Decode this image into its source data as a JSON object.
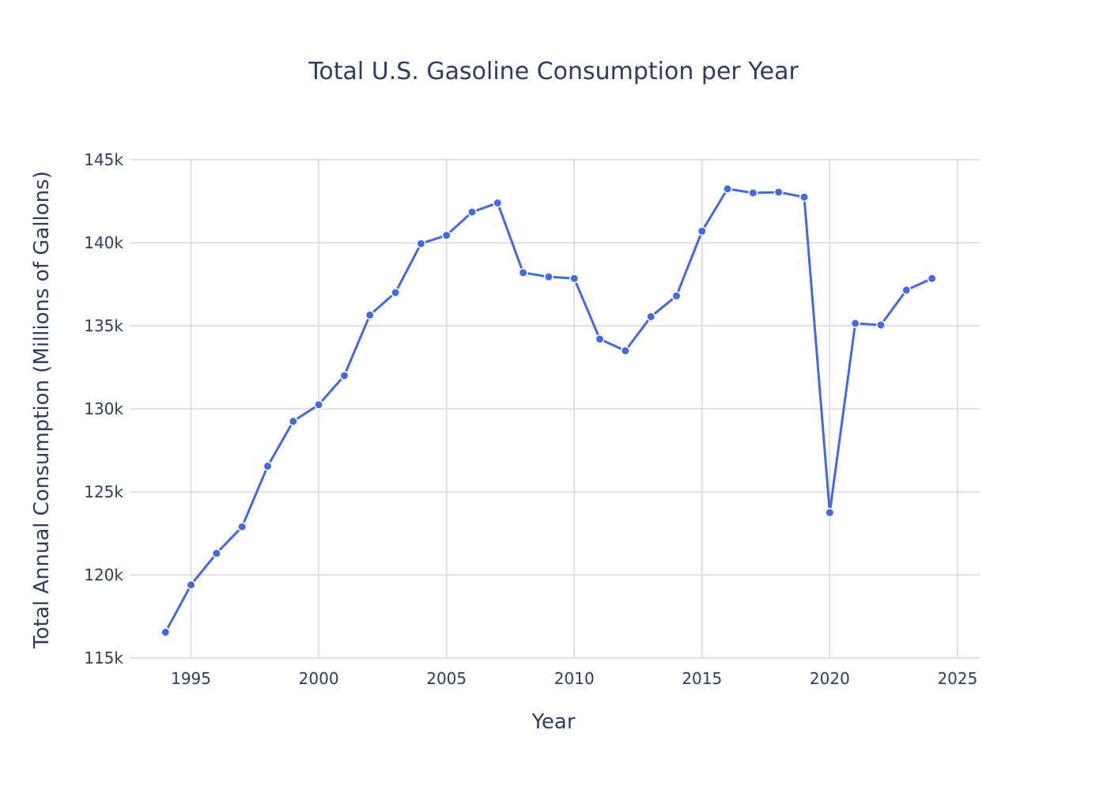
{
  "chart_data": {
    "type": "line",
    "title": "Total U.S. Gasoline Consumption per Year",
    "xlabel": "Year",
    "ylabel": "Total Annual Consumption (Millions of Gallons)",
    "xlim": [
      1992.6,
      2025.9
    ],
    "ylim": [
      115000,
      145000
    ],
    "xticks": [
      1995,
      2000,
      2005,
      2010,
      2015,
      2020,
      2025
    ],
    "yticks": [
      115000,
      120000,
      125000,
      130000,
      135000,
      140000,
      145000
    ],
    "ytick_labels": [
      "115k",
      "120k",
      "125k",
      "130k",
      "135k",
      "140k",
      "145k"
    ],
    "grid": true,
    "line_color": "#4169e1",
    "series": [
      {
        "x": [
          1994,
          1995,
          1996,
          1997,
          1998,
          1999,
          2000,
          2001,
          2002,
          2003,
          2004,
          2005,
          2006,
          2007,
          2008,
          2009,
          2010,
          2011,
          2012,
          2013,
          2014,
          2015,
          2016,
          2017,
          2018,
          2019,
          2020,
          2021,
          2022,
          2023,
          2024
        ],
        "values": [
          116550,
          119400,
          121300,
          122900,
          126550,
          129250,
          130250,
          132000,
          135650,
          137000,
          139950,
          140450,
          141850,
          142400,
          138200,
          137950,
          137850,
          134200,
          133500,
          135550,
          136800,
          140700,
          143250,
          143000,
          143050,
          142750,
          123750,
          135150,
          135050,
          137150,
          137850
        ]
      }
    ]
  }
}
